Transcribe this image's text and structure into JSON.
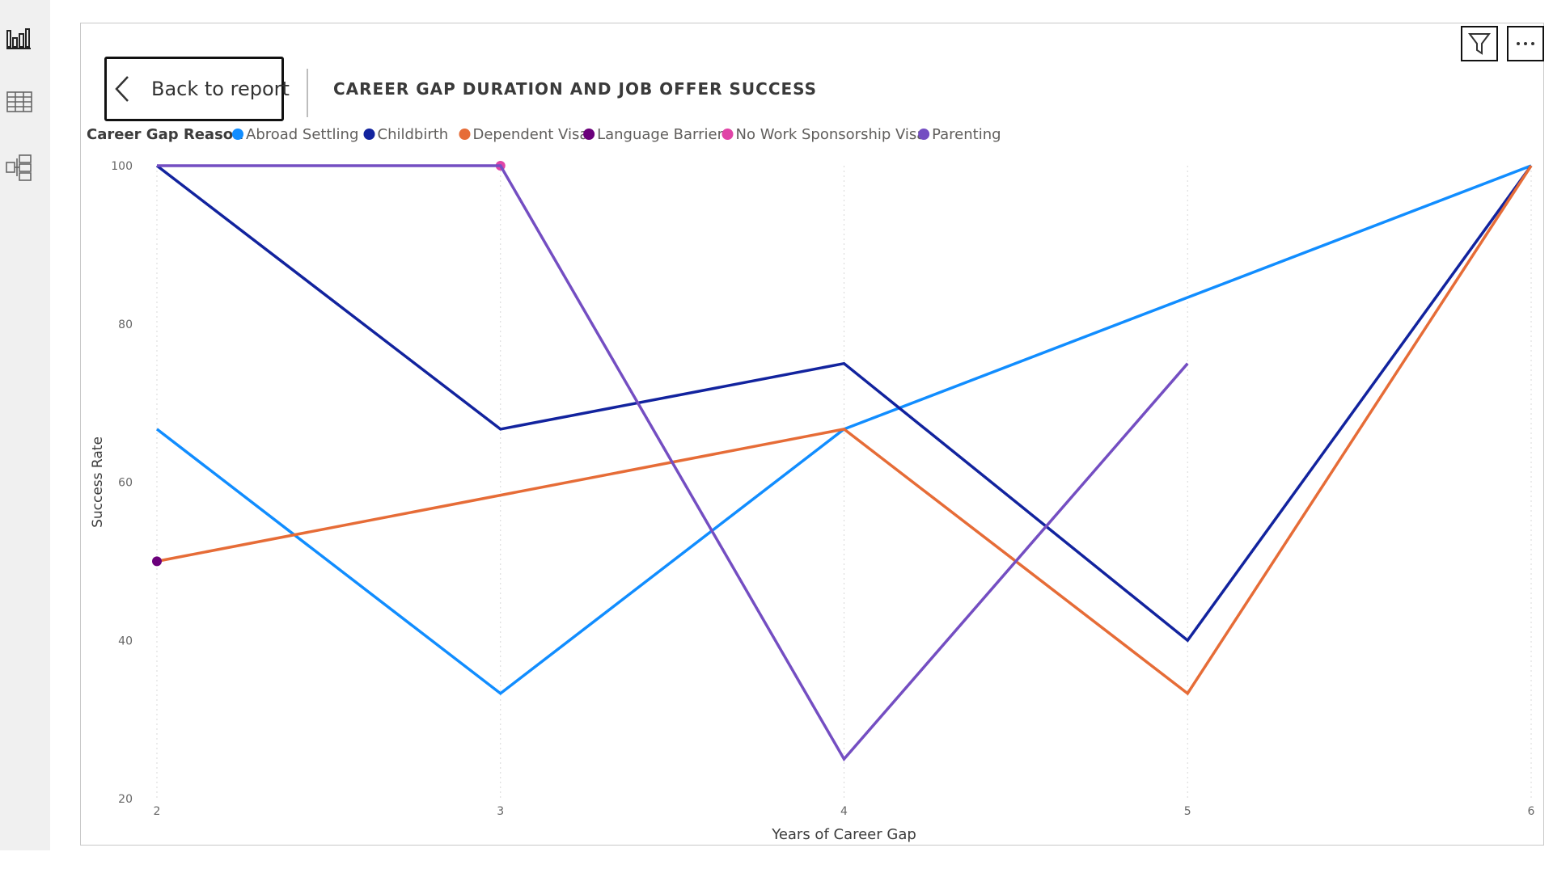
{
  "nav": {
    "icons": [
      "report-view-icon",
      "table-view-icon",
      "model-view-icon"
    ]
  },
  "header": {
    "back_label": "Back to report",
    "title": "CAREER GAP DURATION AND JOB OFFER SUCCESS",
    "filter_icon": "filter-icon",
    "more_icon": "more-options-icon"
  },
  "colors": {
    "accent": "#118DFF",
    "card_border": "#c8c8c8",
    "rail_bg": "#f0f0f0"
  },
  "chart_data": {
    "type": "line",
    "title": "CAREER GAP DURATION AND JOB OFFER SUCCESS",
    "legend_title": "Career Gap Reason",
    "legend_position": "top-left",
    "xlabel": "Years of Career Gap",
    "ylabel": "Success Rate",
    "x_ticks": [
      2,
      3,
      4,
      5,
      6
    ],
    "y_ticks": [
      20,
      40,
      60,
      80,
      100
    ],
    "xlim": [
      2,
      6
    ],
    "ylim": [
      20,
      100
    ],
    "grid": "vertical dotted",
    "series": [
      {
        "name": "Abroad Settling",
        "color": "#118DFF",
        "points": [
          [
            2,
            66.7
          ],
          [
            3,
            33.3
          ],
          [
            4,
            66.7
          ],
          [
            6,
            100
          ]
        ]
      },
      {
        "name": "Childbirth",
        "color": "#12239E",
        "points": [
          [
            2,
            100
          ],
          [
            3,
            66.7
          ],
          [
            4,
            75
          ],
          [
            5,
            40
          ],
          [
            6,
            100
          ]
        ]
      },
      {
        "name": "Dependent Visa",
        "color": "#E66C37",
        "points": [
          [
            2,
            50
          ],
          [
            4,
            66.7
          ],
          [
            5,
            33.3
          ],
          [
            6,
            100
          ]
        ]
      },
      {
        "name": "Language Barrier",
        "color": "#6B007B",
        "points": [
          [
            2,
            50
          ]
        ]
      },
      {
        "name": "No Work Sponsorship Visa",
        "color": "#E044A7",
        "points": [
          [
            3,
            100
          ]
        ]
      },
      {
        "name": "Parenting",
        "color": "#744EC2",
        "points": [
          [
            2,
            100
          ],
          [
            3,
            100
          ],
          [
            4,
            25
          ],
          [
            5,
            75
          ]
        ]
      }
    ]
  }
}
